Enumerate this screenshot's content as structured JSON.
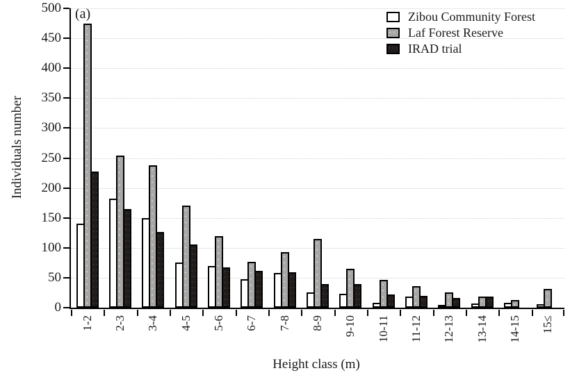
{
  "figure": {
    "panel_label": "(a)"
  },
  "chart_data": {
    "type": "bar",
    "title": "",
    "panel": "(a)",
    "xlabel": "Height class (m)",
    "ylabel": "Individuals number",
    "ylim": [
      0,
      500
    ],
    "ytick_step": 50,
    "grid": "horizontal dotted lines every 50",
    "legend_position": "top-right inside plot",
    "x_tick_label_rotation": 90,
    "categories": [
      "1-2",
      "2-3",
      "3-4",
      "4-5",
      "5-6",
      "6-7",
      "7-8",
      "8-9",
      "9-10",
      "10-11",
      "11-12",
      "12-13",
      "13-14",
      "14-15",
      "15≤"
    ],
    "series": [
      {
        "name": "Zibou Community Forest",
        "fill": "white",
        "color": "#ffffff",
        "values": [
          140,
          182,
          150,
          75,
          70,
          48,
          58,
          25,
          23,
          8,
          18,
          5,
          7,
          8,
          6
        ]
      },
      {
        "name": "Laf Forest Reserve",
        "fill": "gray",
        "color": "#a7a7a7",
        "values": [
          475,
          254,
          238,
          170,
          120,
          77,
          93,
          115,
          65,
          46,
          36,
          25,
          18,
          13,
          31
        ]
      },
      {
        "name": "IRAD trial",
        "fill": "dark",
        "color": "#201c1b",
        "values": [
          227,
          165,
          127,
          106,
          67,
          62,
          59,
          40,
          40,
          22,
          20,
          16,
          18,
          0,
          0
        ]
      }
    ]
  }
}
